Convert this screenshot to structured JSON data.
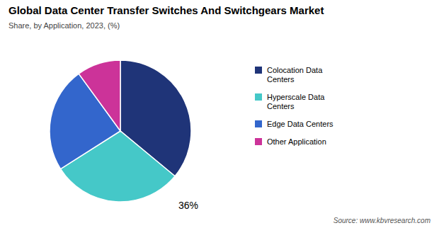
{
  "chart_data": {
    "type": "pie",
    "title": "Global Data Center Transfer Switches And Switchgears Market",
    "subtitle": "Share, by Application, 2023, (%)",
    "annotation": "36%",
    "source": "Source: www.kbvresearch.com",
    "categories": [
      "Colocation Data\nCenters",
      "Hyperscale Data\nCenters",
      "Edge Data Centers",
      "Other Application"
    ],
    "values": [
      36,
      30,
      24,
      10
    ],
    "colors": [
      "#1f3478",
      "#45c8c8",
      "#3366cc",
      "#cc3399"
    ],
    "legend": "right"
  }
}
